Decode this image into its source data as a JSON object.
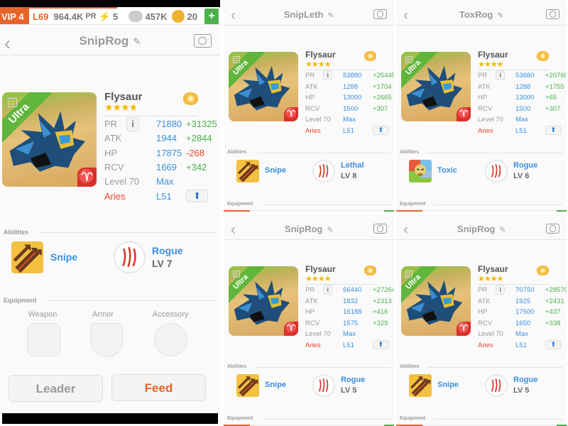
{
  "status_bar": {
    "vip": "VIP 4",
    "level": "L69",
    "pr_value": "964.4K",
    "pr_unit": "PR",
    "energy": "5",
    "food": "457K",
    "gems": "20",
    "add": "+"
  },
  "colors": {
    "value": "#3a8ee0",
    "positive": "#4cb04c",
    "negative": "#e8452e",
    "sign": "#e8452e",
    "rarity": "#5fb63a",
    "feed": "#e8642a"
  },
  "panels": [
    {
      "title": "SnipRog",
      "name": "Flysaur",
      "rarity": "Ultra",
      "stars": "★★★★",
      "stats": [
        {
          "label": "PR",
          "value": "71880",
          "delta": "+31325",
          "delta_type": "positive"
        },
        {
          "label": "ATK",
          "value": "1944",
          "delta": "+2844",
          "delta_type": "positive"
        },
        {
          "label": "HP",
          "value": "17875",
          "delta": "-268",
          "delta_type": "negative"
        },
        {
          "label": "RCV",
          "value": "1669",
          "delta": "+342",
          "delta_type": "positive"
        }
      ],
      "level_label": "Level 70",
      "level_value": "Max",
      "sign_label": "Aries",
      "sign_value": "L51",
      "abilities_label": "Abilities",
      "abilities": [
        {
          "name": "Snipe",
          "icon": "snipe-arrows-icon"
        },
        {
          "name": "Rogue",
          "level": "LV 7",
          "icon": "claw-marks-icon"
        }
      ],
      "equipment_label": "Equipment",
      "equipment_slots": [
        "Weapon",
        "Armor",
        "Accessory"
      ],
      "buttons": {
        "leader": "Leader",
        "feed": "Feed"
      }
    },
    {
      "title": "SnipLeth",
      "name": "Flysaur",
      "rarity": "Ultra",
      "stars": "★★★★",
      "stats": [
        {
          "label": "PR",
          "value": "53880",
          "delta": "+25445",
          "delta_type": "positive"
        },
        {
          "label": "ATK",
          "value": "1288",
          "delta": "+1704",
          "delta_type": "positive"
        },
        {
          "label": "HP",
          "value": "13000",
          "delta": "+2665",
          "delta_type": "positive"
        },
        {
          "label": "RCV",
          "value": "1500",
          "delta": "+307",
          "delta_type": "positive"
        }
      ],
      "level_label": "Level 70",
      "level_value": "Max",
      "sign_label": "Aries",
      "sign_value": "L51",
      "abilities_label": "Abilities",
      "abilities": [
        {
          "name": "Snipe",
          "icon": "snipe-arrows-icon"
        },
        {
          "name": "Lethal",
          "level": "LV 8",
          "icon": "claw-marks-icon"
        }
      ],
      "equipment_label": "Equipment"
    },
    {
      "title": "ToxRog",
      "name": "Flysaur",
      "rarity": "Ultra",
      "stars": "★★★★",
      "stats": [
        {
          "label": "PR",
          "value": "53880",
          "delta": "+20760",
          "delta_type": "positive"
        },
        {
          "label": "ATK",
          "value": "1288",
          "delta": "+1755",
          "delta_type": "positive"
        },
        {
          "label": "HP",
          "value": "13000",
          "delta": "+65",
          "delta_type": "positive"
        },
        {
          "label": "RCV",
          "value": "1500",
          "delta": "+307",
          "delta_type": "positive"
        }
      ],
      "level_label": "Level 70",
      "level_value": "Max",
      "sign_label": "Aries",
      "sign_value": "L51",
      "abilities_label": "Abilities",
      "abilities": [
        {
          "name": "Toxic",
          "icon": "toxic-skull-icon"
        },
        {
          "name": "Rogue",
          "level": "LV 6",
          "icon": "claw-marks-icon"
        }
      ],
      "equipment_label": "Equipment"
    },
    {
      "title": "SnipRog",
      "name": "Flysaur",
      "rarity": "Ultra",
      "stars": "★★★★",
      "stats": [
        {
          "label": "PR",
          "value": "66440",
          "delta": "+27264",
          "delta_type": "positive"
        },
        {
          "label": "ATK",
          "value": "1832",
          "delta": "+2313",
          "delta_type": "positive"
        },
        {
          "label": "HP",
          "value": "16188",
          "delta": "+416",
          "delta_type": "positive"
        },
        {
          "label": "RCV",
          "value": "1575",
          "delta": "+329",
          "delta_type": "positive"
        }
      ],
      "level_label": "Level 70",
      "level_value": "Max",
      "sign_label": "Aries",
      "sign_value": "L51",
      "abilities_label": "Abilities",
      "abilities": [
        {
          "name": "Snipe",
          "icon": "snipe-arrows-icon"
        },
        {
          "name": "Rogue",
          "level": "LV 5",
          "icon": "claw-marks-icon"
        }
      ],
      "equipment_label": "Equipment"
    },
    {
      "title": "SnipRog",
      "name": "Flysaur",
      "rarity": "Ultra",
      "stars": "★★★★",
      "stats": [
        {
          "label": "PR",
          "value": "70750",
          "delta": "+28570",
          "delta_type": "positive"
        },
        {
          "label": "ATK",
          "value": "1925",
          "delta": "+2431",
          "delta_type": "positive"
        },
        {
          "label": "HP",
          "value": "17500",
          "delta": "+437",
          "delta_type": "positive"
        },
        {
          "label": "RCV",
          "value": "1650",
          "delta": "+338",
          "delta_type": "positive"
        }
      ],
      "level_label": "Level 70",
      "level_value": "Max",
      "sign_label": "Aries",
      "sign_value": "L51",
      "abilities_label": "Abilities",
      "abilities": [
        {
          "name": "Snipe",
          "icon": "snipe-arrows-icon"
        },
        {
          "name": "Rogue",
          "level": "LV 5",
          "icon": "claw-marks-icon"
        }
      ],
      "equipment_label": "Equipment"
    }
  ]
}
